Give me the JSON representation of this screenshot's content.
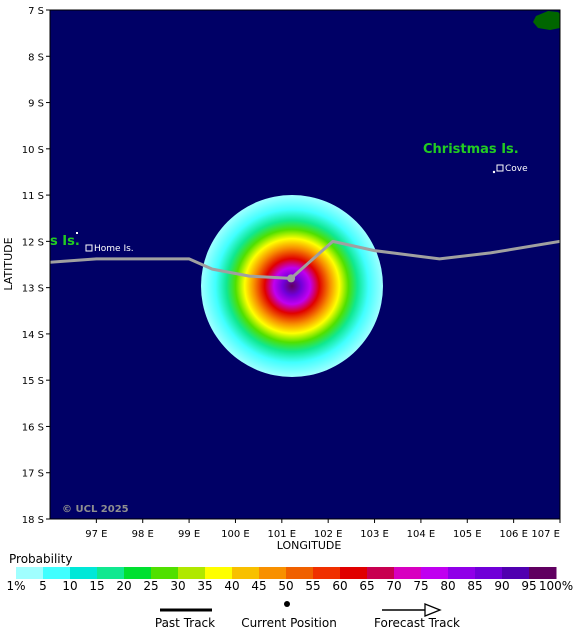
{
  "map": {
    "lon_range": [
      96,
      107
    ],
    "lat_range": [
      -18,
      -7
    ],
    "lon_ticks": [
      97,
      98,
      99,
      100,
      101,
      102,
      103,
      104,
      105,
      106,
      107
    ],
    "lat_ticks": [
      -7,
      -8,
      -9,
      -10,
      -11,
      -12,
      -13,
      -14,
      -15,
      -16,
      -17,
      -18
    ],
    "lon_tick_labels": [
      "97 E",
      "98 E",
      "99 E",
      "100 E",
      "101 E",
      "102 E",
      "103 E",
      "104 E",
      "105 E",
      "106 E",
      "107 E"
    ],
    "lat_tick_labels": [
      "7 S",
      "8 S",
      "9 S",
      "10 S",
      "11 S",
      "12 S",
      "13 S",
      "14 S",
      "15 S",
      "16 S",
      "17 S",
      "18 S"
    ],
    "xlabel": "LONGITUDE",
    "ylabel": "LATITUDE",
    "copyright": "© UCL 2025",
    "ocean_color": "#000066",
    "land_color": "#006600"
  },
  "places": {
    "christmas_island": "Christmas Is.",
    "cocos_island": "s Is.",
    "cove": "Cove",
    "home_island": "Home Is."
  },
  "storm": {
    "current_position": {
      "lon": 101.2,
      "lat": -12.8
    },
    "track": [
      {
        "lon": 96,
        "lat": -12.45
      },
      {
        "lon": 97,
        "lat": -12.38
      },
      {
        "lon": 99.0,
        "lat": -12.38
      },
      {
        "lon": 99.5,
        "lat": -12.6
      },
      {
        "lon": 100.3,
        "lat": -12.75
      },
      {
        "lon": 101.2,
        "lat": -12.8
      },
      {
        "lon": 102.1,
        "lat": -12.0
      },
      {
        "lon": 103.0,
        "lat": -12.2
      },
      {
        "lon": 104.4,
        "lat": -12.38
      },
      {
        "lon": 105.5,
        "lat": -12.25
      },
      {
        "lon": 107,
        "lat": -12.0
      }
    ],
    "track_color": "#a0a0a0"
  },
  "legend": {
    "title": "Probability",
    "labels": [
      "1%",
      "5",
      "10",
      "15",
      "20",
      "25",
      "30",
      "35",
      "40",
      "45",
      "50",
      "55",
      "60",
      "65",
      "70",
      "75",
      "80",
      "85",
      "90",
      "95",
      "100%"
    ],
    "colors": [
      "#a0ffff",
      "#40ffff",
      "#00e8d8",
      "#10e890",
      "#00e030",
      "#50e000",
      "#b0e800",
      "#ffff00",
      "#f8c000",
      "#f89000",
      "#f06000",
      "#f03000",
      "#e00000",
      "#c80050",
      "#d800c0",
      "#c000f0",
      "#9000e8",
      "#7000d8",
      "#5000b0",
      "#600060"
    ],
    "past_track": "Past Track",
    "current_position": "Current Position",
    "forecast_track": "Forecast Track"
  }
}
